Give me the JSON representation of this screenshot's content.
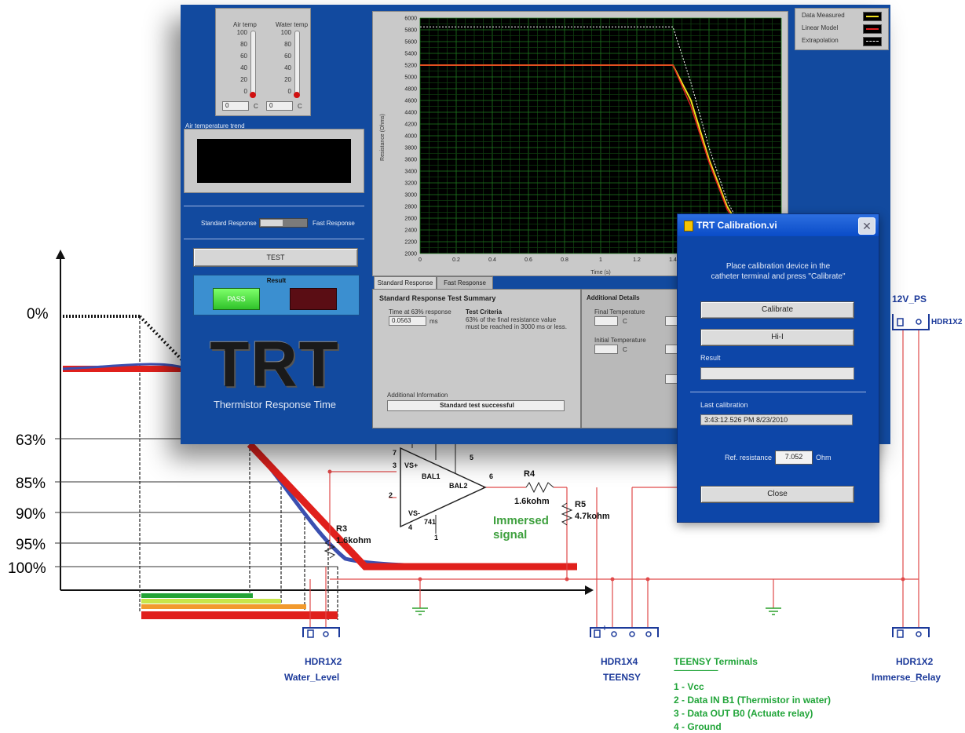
{
  "response_chart": {
    "y_levels": [
      "0%",
      "63%",
      "85%",
      "90%",
      "95%",
      "100%"
    ]
  },
  "schematic": {
    "r3_label": "R3",
    "r3_value": "1.6kohm",
    "r4_label": "R4",
    "r4_value": "1.6kohm",
    "r5_label": "R5",
    "r5_value": "4.7kohm",
    "opamp_pins": [
      "VS+",
      "BAL1",
      "BAL2",
      "VS-",
      "741"
    ],
    "pin_numbers": [
      "7",
      "5",
      "6",
      "2",
      "3",
      "4",
      "1"
    ],
    "immersed_signal": [
      "Immersed",
      "signal"
    ],
    "headers": [
      {
        "type": "HDR1X2",
        "name": "Water_Level"
      },
      {
        "type": "HDR1X4",
        "name": "TEENSY"
      },
      {
        "type": "HDR1X2",
        "name": "Immerse_Relay"
      },
      {
        "type": "HDR1X2",
        "name": "12V_PS"
      }
    ],
    "teensy_terminals": {
      "title": "TEENSY Terminals",
      "rule": "----------------------------",
      "items": [
        "1 - Vcc",
        "2 - Data IN B1 (Thermistor in water)",
        "3 - Data OUT B0 (Actuate relay)",
        "4 - Ground"
      ]
    }
  },
  "main_window": {
    "air_temp_label": "Air temp",
    "water_temp_label": "Water temp",
    "thermo_ticks": [
      "100",
      "80",
      "60",
      "40",
      "20",
      "0"
    ],
    "air_temp_value": "0",
    "water_temp_value": "0",
    "temp_unit": "C",
    "air_trend_label": "Air temperature trend",
    "switch_left": "Standard Response",
    "switch_right": "Fast Response",
    "test_button": "TEST",
    "result_label": "Result",
    "pass_label": "PASS",
    "logo_text": "TRT",
    "logo_subtitle": "Thermistor Response Time",
    "graph": {
      "y_ticks": [
        "6000",
        "5800",
        "5600",
        "5400",
        "5200",
        "5000",
        "4800",
        "4600",
        "4400",
        "4200",
        "4000",
        "3800",
        "3600",
        "3400",
        "3200",
        "3000",
        "2800",
        "2600",
        "2400",
        "2200",
        "2000"
      ],
      "x_ticks": [
        "0",
        "0.2",
        "0.4",
        "0.6",
        "0.8",
        "1",
        "1.2",
        "1.4",
        "1.6",
        "1.8"
      ],
      "y_label": "Resistance (Ohms)",
      "x_label": "Time (s)"
    },
    "legend": [
      "Data Measured",
      "Linear Model",
      "Extrapolation"
    ],
    "tabs": [
      "Standard Response",
      "Fast Response"
    ],
    "summary_title": "Standard Response Test Summary",
    "time_label": "Time at 63% response",
    "time_value": "0.0563",
    "time_unit": "ms",
    "criteria_title": "Test Criteria",
    "criteria_text": [
      "63% of the final resistance value",
      "must be reached in 3000 ms or less."
    ],
    "additional_label": "Additional Information",
    "additional_value": "Standard test successful",
    "additional_details_title": "Additional Details",
    "final_temp_label": "Final Temperature",
    "initial_temp_label": "Initial Temperature",
    "detail_unit": "C"
  },
  "chart_data": {
    "type": "line",
    "title": "",
    "xlabel": "Time (s)",
    "ylabel": "Resistance (Ohms)",
    "xlim": [
      0,
      2
    ],
    "ylim": [
      2000,
      6000
    ],
    "series": [
      {
        "name": "Data Measured",
        "x": [
          0,
          1.4,
          1.5,
          1.6,
          1.7,
          1.8,
          1.9,
          2.0
        ],
        "y": [
          5200,
          5200,
          4600,
          3600,
          2800,
          2300,
          2050,
          2000
        ]
      },
      {
        "name": "Linear Model",
        "x": [
          0,
          1.4,
          1.5,
          1.6,
          1.7,
          1.8,
          1.9,
          2.0
        ],
        "y": [
          5200,
          5200,
          4500,
          3550,
          2750,
          2250,
          2030,
          2000
        ]
      },
      {
        "name": "Extrapolation",
        "x": [
          0,
          1.4,
          1.5,
          1.6,
          1.7,
          1.8,
          2.0
        ],
        "y": [
          5850,
          5850,
          4900,
          3800,
          2900,
          2300,
          2000
        ]
      }
    ]
  },
  "dialog": {
    "title": "TRT Calibration.vi",
    "instruction": [
      "Place calibration device in the",
      "catheter terminal and press \"Calibrate\""
    ],
    "calibrate_button": "Calibrate",
    "hi_button": "Hi-I",
    "result_label": "Result",
    "last_calibration_label": "Last calibration",
    "last_calibration_value": "3:43:12.526 PM 8/23/2010",
    "ref_resistance_label": "Ref. resistance",
    "ref_resistance_value": "7.052",
    "ref_resistance_unit": "Ohm",
    "close_button": "Close"
  }
}
